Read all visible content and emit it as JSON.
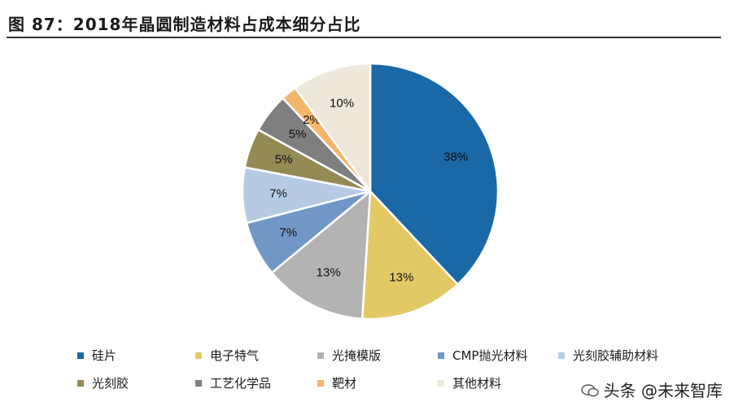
{
  "title": "图 87：2018年晶圆制造材料占成本细分占比",
  "watermark": "头条 @未来智库",
  "chart_data": {
    "type": "pie",
    "title": "",
    "start_angle_deg": 0,
    "direction": "clockwise",
    "slices": [
      {
        "label": "硅片",
        "value": 38,
        "display": "38%",
        "color": "#1b68a6"
      },
      {
        "label": "电子特气",
        "value": 13,
        "display": "13%",
        "color": "#e3c866"
      },
      {
        "label": "光掩模版",
        "value": 13,
        "display": "13%",
        "color": "#b3b3b3"
      },
      {
        "label": "CMP抛光材料",
        "value": 7,
        "display": "7%",
        "color": "#7197c6"
      },
      {
        "label": "光刻胶辅助材料",
        "value": 7,
        "display": "7%",
        "color": "#b6cbe3"
      },
      {
        "label": "光刻胶",
        "value": 5,
        "display": "5%",
        "color": "#948a54"
      },
      {
        "label": "工艺化学品",
        "value": 5,
        "display": "5%",
        "color": "#7f7f7f"
      },
      {
        "label": "靶材",
        "value": 2,
        "display": "2%",
        "color": "#f4b46a"
      },
      {
        "label": "其他材料",
        "value": 10,
        "display": "10%",
        "color": "#efe7d9"
      }
    ],
    "legend": {
      "position": "bottom"
    }
  }
}
